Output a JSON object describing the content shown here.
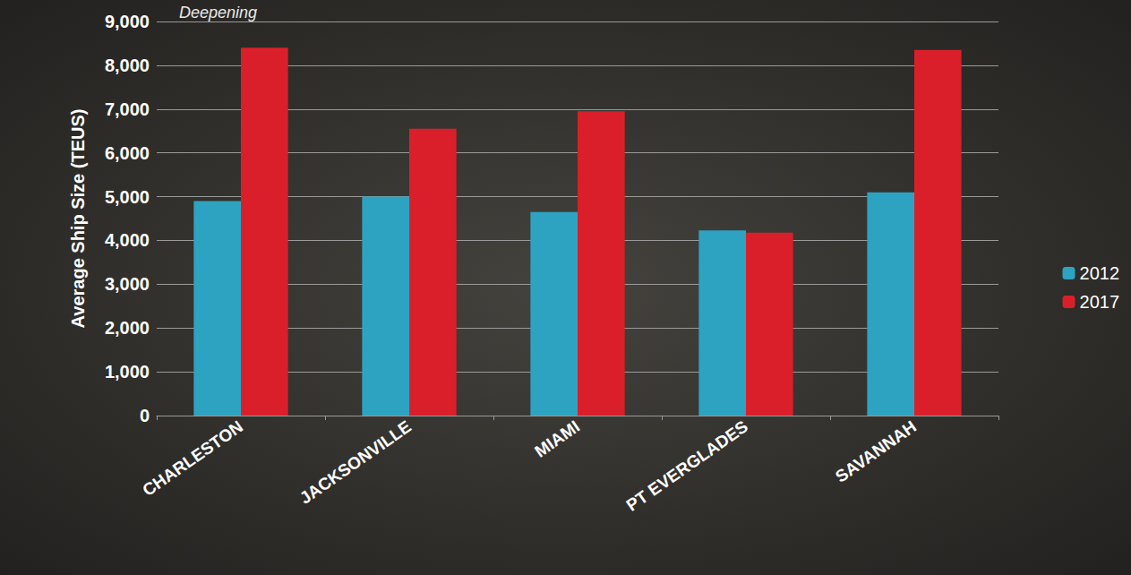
{
  "chart_data": {
    "type": "bar",
    "title": "Deepening",
    "y_label": "Average Ship Size (TEUS)",
    "categories": [
      "CHARLESTON",
      "JACKSONVILLE",
      "MIAMI",
      "PT EVERGLADES",
      "SAVANNAH"
    ],
    "series": [
      {
        "name": "2012",
        "color": "#2ea3c1",
        "values": [
          4900,
          5000,
          4650,
          4230,
          5100
        ]
      },
      {
        "name": "2017",
        "color": "#db1f2a",
        "values": [
          8400,
          6550,
          6950,
          4180,
          8350
        ]
      }
    ],
    "ylim": [
      0,
      9000
    ],
    "yticks": [
      0,
      {
        "value": 1000,
        "label": "1,000"
      },
      {
        "value": 2000,
        "label": "2,000"
      },
      {
        "value": 3000,
        "label": "3,000"
      },
      {
        "value": 4000,
        "label": "4,000"
      },
      {
        "value": 5000,
        "label": "5,000"
      },
      {
        "value": 6000,
        "label": "6,000"
      },
      {
        "value": 7000,
        "label": "7,000"
      },
      {
        "value": 8000,
        "label": "8,000"
      },
      {
        "value": 9000,
        "label": "9,000"
      }
    ],
    "grid": true,
    "legend": "right"
  }
}
